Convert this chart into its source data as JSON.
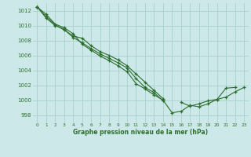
{
  "title": "Graphe pression niveau de la mer (hPa)",
  "bg_color": "#cce8e8",
  "grid_color": "#a8d0d0",
  "line_color": "#2d6e2d",
  "xlim": [
    -0.5,
    23.5
  ],
  "ylim": [
    997.0,
    1013.0
  ],
  "yticks": [
    998,
    1000,
    1002,
    1004,
    1006,
    1008,
    1010,
    1012
  ],
  "xticks": [
    0,
    1,
    2,
    3,
    4,
    5,
    6,
    7,
    8,
    9,
    10,
    11,
    12,
    13,
    14,
    15,
    16,
    17,
    18,
    19,
    20,
    21,
    22,
    23
  ],
  "series": [
    [
      1012.5,
      1011.5,
      1010.2,
      1009.7,
      1008.9,
      1007.5,
      1006.7,
      1005.9,
      1005.3,
      1004.6,
      1003.8,
      1002.2,
      1001.5,
      1000.7,
      1000.0,
      998.3,
      998.5,
      999.3,
      999.1,
      999.5,
      1000.1,
      1000.4,
      1001.1,
      1001.7
    ],
    [
      1012.5,
      1011.2,
      1010.1,
      1009.4,
      1008.6,
      1008.3,
      1007.3,
      1006.5,
      1006.0,
      1005.4,
      1004.6,
      1003.5,
      1002.4,
      1001.3,
      1000.2,
      null,
      null,
      null,
      null,
      null,
      null,
      null,
      null,
      null
    ],
    [
      1012.5,
      1011.0,
      1010.0,
      1009.5,
      1008.4,
      1007.7,
      1006.9,
      1006.2,
      1005.6,
      1005.0,
      1004.3,
      1002.9,
      1001.7,
      1001.0,
      999.9,
      null,
      null,
      null,
      null,
      null,
      null,
      null,
      null,
      null
    ],
    [
      null,
      null,
      null,
      null,
      null,
      null,
      null,
      null,
      null,
      null,
      null,
      null,
      null,
      null,
      null,
      null,
      999.7,
      999.2,
      999.5,
      999.9,
      1000.1,
      1001.6,
      1001.7,
      null
    ]
  ]
}
